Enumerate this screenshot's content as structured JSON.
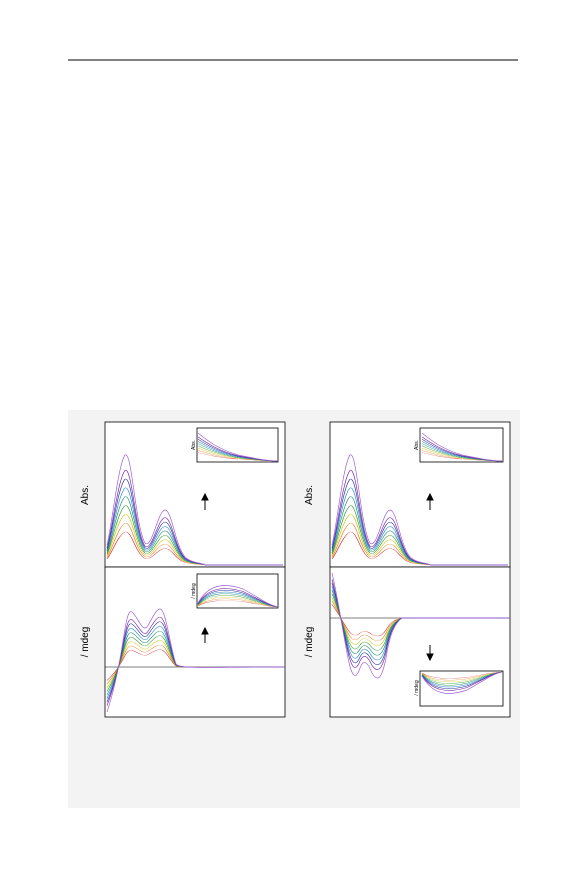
{
  "figure": {
    "panels": [
      {
        "ylabel": "Abs.",
        "inset_label": "Abs."
      },
      {
        "ylabel": "/ mdeg",
        "inset_label": "/ mdeg"
      },
      {
        "ylabel": "Abs.",
        "inset_label": "Abs."
      },
      {
        "ylabel": "/ mdeg",
        "inset_label": "/ mdeg"
      }
    ]
  }
}
